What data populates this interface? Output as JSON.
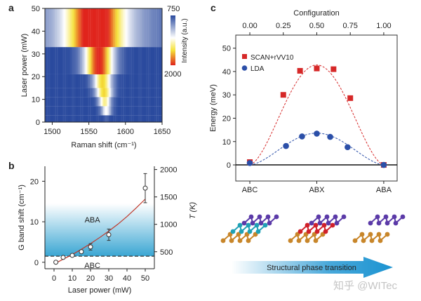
{
  "panel_labels": [
    "a",
    "b",
    "c"
  ],
  "chart_data": [
    {
      "type": "heatmap",
      "panel": "a",
      "xlabel": "Raman shift (cm⁻¹)",
      "ylabel": "Laser power (mW)",
      "xlim": [
        1490,
        1650
      ],
      "ylim": [
        0,
        50
      ],
      "xticks": [
        1500,
        1550,
        1600,
        1650
      ],
      "yticks": [
        0,
        10,
        20,
        30,
        40,
        50
      ],
      "colorbar": {
        "label": "Intensity (a.u.)",
        "min_label": "750",
        "max_label": "2000",
        "colors": [
          "#2a4a9e",
          "#ffffff",
          "#f5e23a",
          "#e0241c"
        ]
      },
      "rows": [
        {
          "power": [
            0,
            3
          ],
          "center": 1573,
          "width": 3,
          "peak": 0.05
        },
        {
          "power": [
            3,
            7
          ],
          "center": 1573,
          "width": 5,
          "peak": 0.45
        },
        {
          "power": [
            7,
            11
          ],
          "center": 1571,
          "width": 6,
          "peak": 0.6
        },
        {
          "power": [
            11,
            15
          ],
          "center": 1570,
          "width": 8,
          "peak": 0.72
        },
        {
          "power": [
            15,
            21
          ],
          "center": 1568,
          "width": 9,
          "peak": 0.72
        },
        {
          "power": [
            21,
            33
          ],
          "center": 1563,
          "width": 14,
          "peak": 1.0
        },
        {
          "power": [
            33,
            50
          ],
          "center": 1558,
          "width": 24,
          "peak": 0.85,
          "background": 0.35
        }
      ]
    },
    {
      "type": "scatter",
      "panel": "b",
      "xlabel": "Laser power (mW)",
      "ylabel": "G band shift (cm⁻¹)",
      "y2label": "T (K)",
      "xlim": [
        -5,
        55
      ],
      "ylim": [
        -1.6,
        23.7
      ],
      "xticks": [
        0,
        10,
        20,
        30,
        40,
        50
      ],
      "yticks": [
        0,
        10,
        20
      ],
      "y2ticks": [
        500,
        1000,
        1500,
        2000
      ],
      "y2_map": {
        "T": [
          500,
          2000
        ],
        "shift": [
          2.6,
          22.9
        ]
      },
      "points": [
        {
          "x": 1,
          "y": 0,
          "err": 0
        },
        {
          "x": 5,
          "y": 1.2,
          "err": 0.2
        },
        {
          "x": 10,
          "y": 1.7,
          "err": 0.2
        },
        {
          "x": 15,
          "y": 2.6,
          "err": 0.3
        },
        {
          "x": 20,
          "y": 3.8,
          "err": 0.8
        },
        {
          "x": 30,
          "y": 6.8,
          "err": 1.4
        },
        {
          "x": 50,
          "y": 18.3,
          "err": 3.6
        }
      ],
      "fit": {
        "x": [
          1,
          5,
          10,
          15,
          20,
          25,
          30,
          35,
          40,
          45,
          50
        ],
        "y": [
          -0.2,
          0.75,
          1.9,
          3.2,
          4.6,
          6.1,
          7.7,
          9.4,
          11.3,
          13.4,
          15.6
        ],
        "color": "#c0392b"
      },
      "threshold": 1.5,
      "region_color": "#3aa6d3",
      "region_top": 14.5,
      "annotations": [
        {
          "text": "ABA",
          "x": 21,
          "y": 10.5
        },
        {
          "text": "ABC",
          "x": 21,
          "y": -0.7
        }
      ]
    },
    {
      "type": "line",
      "panel": "c",
      "xlabel_top": "Configuration",
      "ylabel": "Energy (meV)",
      "xlim": [
        -0.105,
        1.1
      ],
      "ylim": [
        -6.9,
        55.6
      ],
      "xticks_top": [
        "0.00",
        "0.25",
        "0.50",
        "0.75",
        "1.00"
      ],
      "xticks_bottom": [
        {
          "x": 0,
          "label": "ABC"
        },
        {
          "x": 0.5,
          "label": "ABX"
        },
        {
          "x": 1,
          "label": "ABA"
        }
      ],
      "yticks": [
        0,
        10,
        20,
        30,
        40,
        50
      ],
      "legend": "top-left",
      "series": [
        {
          "name": "SCAN+rVV10",
          "marker": "square",
          "color": "#d62828",
          "x": [
            0,
            0.25,
            0.375,
            0.5,
            0.625,
            0.75,
            1.0
          ],
          "y": [
            1.2,
            30,
            40.3,
            41.3,
            41,
            28.6,
            0
          ]
        },
        {
          "name": "LDA",
          "marker": "circle",
          "color": "#2b4fa8",
          "x": [
            0,
            0.27,
            0.39,
            0.5,
            0.6,
            0.73,
            1.0
          ],
          "y": [
            0.8,
            8.1,
            12.2,
            13.4,
            12,
            7.6,
            0
          ]
        }
      ],
      "fits": [
        {
          "color": "#d62828",
          "peak": 42.8
        },
        {
          "color": "#2b4fa8",
          "peak": 13.6
        }
      ]
    }
  ],
  "structures": {
    "labels_colors": {
      "bottom": "#c8862a",
      "middle_abc": "#1fa1b5",
      "middle_abx": "#d0202a",
      "top": "#5b3aa8"
    }
  },
  "arrow": {
    "label": "Structural phase transition",
    "color": "#1b93d1"
  },
  "watermark": "知乎 @WITec"
}
